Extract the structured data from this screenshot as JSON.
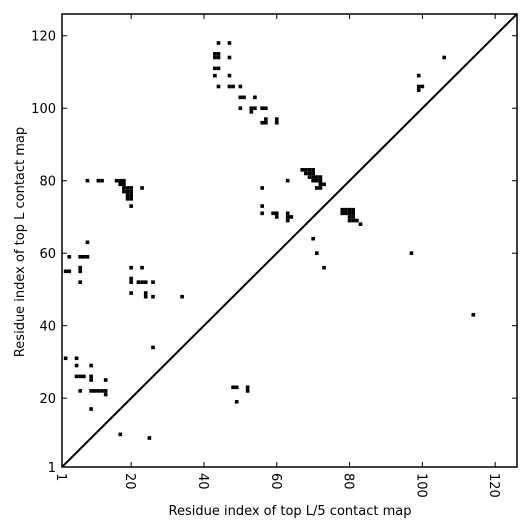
{
  "chart_data": {
    "type": "heatmap",
    "subtype": "contact-map comparison",
    "xlabel": "Residue index of top L/5 contact map",
    "ylabel": "Residue index of top L contact map",
    "xlim": [
      1,
      126
    ],
    "ylim": [
      1,
      126
    ],
    "x_ticks": [
      1,
      20,
      40,
      60,
      80,
      100,
      120
    ],
    "y_ticks": [
      1,
      20,
      40,
      60,
      80,
      100,
      120
    ],
    "x_tick_rotation": "vertical",
    "diagonal_line": true,
    "grid": false,
    "cell_color": "#000000",
    "background_color": "#ffffff",
    "lower_triangle_points": [
      [
        17,
        10
      ],
      [
        25,
        9
      ],
      [
        26,
        34
      ],
      [
        9,
        17
      ],
      [
        13,
        21
      ],
      [
        13,
        22
      ],
      [
        13,
        25
      ],
      [
        12,
        22
      ],
      [
        11,
        22
      ],
      [
        10,
        22
      ],
      [
        9,
        22
      ],
      [
        6,
        22
      ],
      [
        9,
        25
      ],
      [
        9,
        26
      ],
      [
        6,
        26
      ],
      [
        5,
        26
      ],
      [
        7,
        26
      ],
      [
        5,
        29
      ],
      [
        5,
        31
      ],
      [
        9,
        29
      ],
      [
        2,
        31
      ],
      [
        48,
        23
      ],
      [
        49,
        23
      ],
      [
        52,
        22
      ],
      [
        52,
        23
      ],
      [
        49,
        19
      ],
      [
        34,
        48
      ],
      [
        24,
        48
      ],
      [
        24,
        49
      ],
      [
        26,
        48
      ],
      [
        23,
        52
      ],
      [
        22,
        52
      ],
      [
        24,
        52
      ],
      [
        26,
        52
      ],
      [
        20,
        49
      ],
      [
        20,
        52
      ],
      [
        20,
        53
      ],
      [
        20,
        56
      ],
      [
        23,
        56
      ],
      [
        2,
        55
      ],
      [
        3,
        55
      ],
      [
        3,
        59
      ],
      [
        6,
        55
      ],
      [
        6,
        56
      ],
      [
        6,
        59
      ],
      [
        7,
        59
      ],
      [
        8,
        59
      ],
      [
        6,
        52
      ],
      [
        8,
        63
      ],
      [
        114,
        43
      ]
    ],
    "upper_triangle_points": [
      [
        8,
        80
      ],
      [
        11,
        80
      ],
      [
        12,
        80
      ],
      [
        16,
        80
      ],
      [
        17,
        80
      ],
      [
        18,
        80
      ],
      [
        17,
        79
      ],
      [
        18,
        79
      ],
      [
        18,
        78
      ],
      [
        19,
        78
      ],
      [
        20,
        78
      ],
      [
        18,
        77
      ],
      [
        19,
        77
      ],
      [
        20,
        77
      ],
      [
        19,
        76
      ],
      [
        20,
        76
      ],
      [
        19,
        75
      ],
      [
        20,
        75
      ],
      [
        20,
        73
      ],
      [
        23,
        78
      ],
      [
        43,
        114
      ],
      [
        43,
        115
      ],
      [
        44,
        114
      ],
      [
        44,
        115
      ],
      [
        43,
        111
      ],
      [
        44,
        111
      ],
      [
        43,
        109
      ],
      [
        44,
        118
      ],
      [
        47,
        114
      ],
      [
        47,
        118
      ],
      [
        47,
        109
      ],
      [
        47,
        106
      ],
      [
        48,
        106
      ],
      [
        44,
        106
      ],
      [
        50,
        106
      ],
      [
        50,
        103
      ],
      [
        51,
        103
      ],
      [
        54,
        103
      ],
      [
        50,
        100
      ],
      [
        53,
        100
      ],
      [
        54,
        100
      ],
      [
        53,
        99
      ],
      [
        56,
        100
      ],
      [
        57,
        100
      ],
      [
        57,
        97
      ],
      [
        57,
        96
      ],
      [
        56,
        96
      ],
      [
        60,
        97
      ],
      [
        60,
        96
      ],
      [
        56,
        78
      ],
      [
        56,
        73
      ],
      [
        56,
        71
      ],
      [
        59,
        71
      ],
      [
        60,
        71
      ],
      [
        60,
        70
      ],
      [
        63,
        71
      ],
      [
        63,
        70
      ],
      [
        64,
        70
      ],
      [
        63,
        69
      ],
      [
        63,
        80
      ],
      [
        67,
        83
      ],
      [
        68,
        83
      ],
      [
        69,
        83
      ],
      [
        70,
        83
      ],
      [
        68,
        82
      ],
      [
        69,
        82
      ],
      [
        70,
        82
      ],
      [
        69,
        81
      ],
      [
        70,
        81
      ],
      [
        71,
        81
      ],
      [
        72,
        81
      ],
      [
        70,
        80
      ],
      [
        71,
        80
      ],
      [
        72,
        80
      ],
      [
        72,
        79
      ],
      [
        73,
        79
      ],
      [
        71,
        78
      ],
      [
        72,
        78
      ],
      [
        70,
        64
      ],
      [
        71,
        60
      ],
      [
        73,
        56
      ],
      [
        78,
        72
      ],
      [
        79,
        72
      ],
      [
        80,
        72
      ],
      [
        81,
        72
      ],
      [
        78,
        71
      ],
      [
        79,
        71
      ],
      [
        80,
        71
      ],
      [
        81,
        71
      ],
      [
        80,
        70
      ],
      [
        81,
        70
      ],
      [
        80,
        69
      ],
      [
        81,
        69
      ],
      [
        82,
        69
      ],
      [
        83,
        68
      ],
      [
        97,
        60
      ],
      [
        99,
        109
      ],
      [
        99,
        106
      ],
      [
        99,
        105
      ],
      [
        100,
        106
      ],
      [
        106,
        114
      ]
    ]
  }
}
